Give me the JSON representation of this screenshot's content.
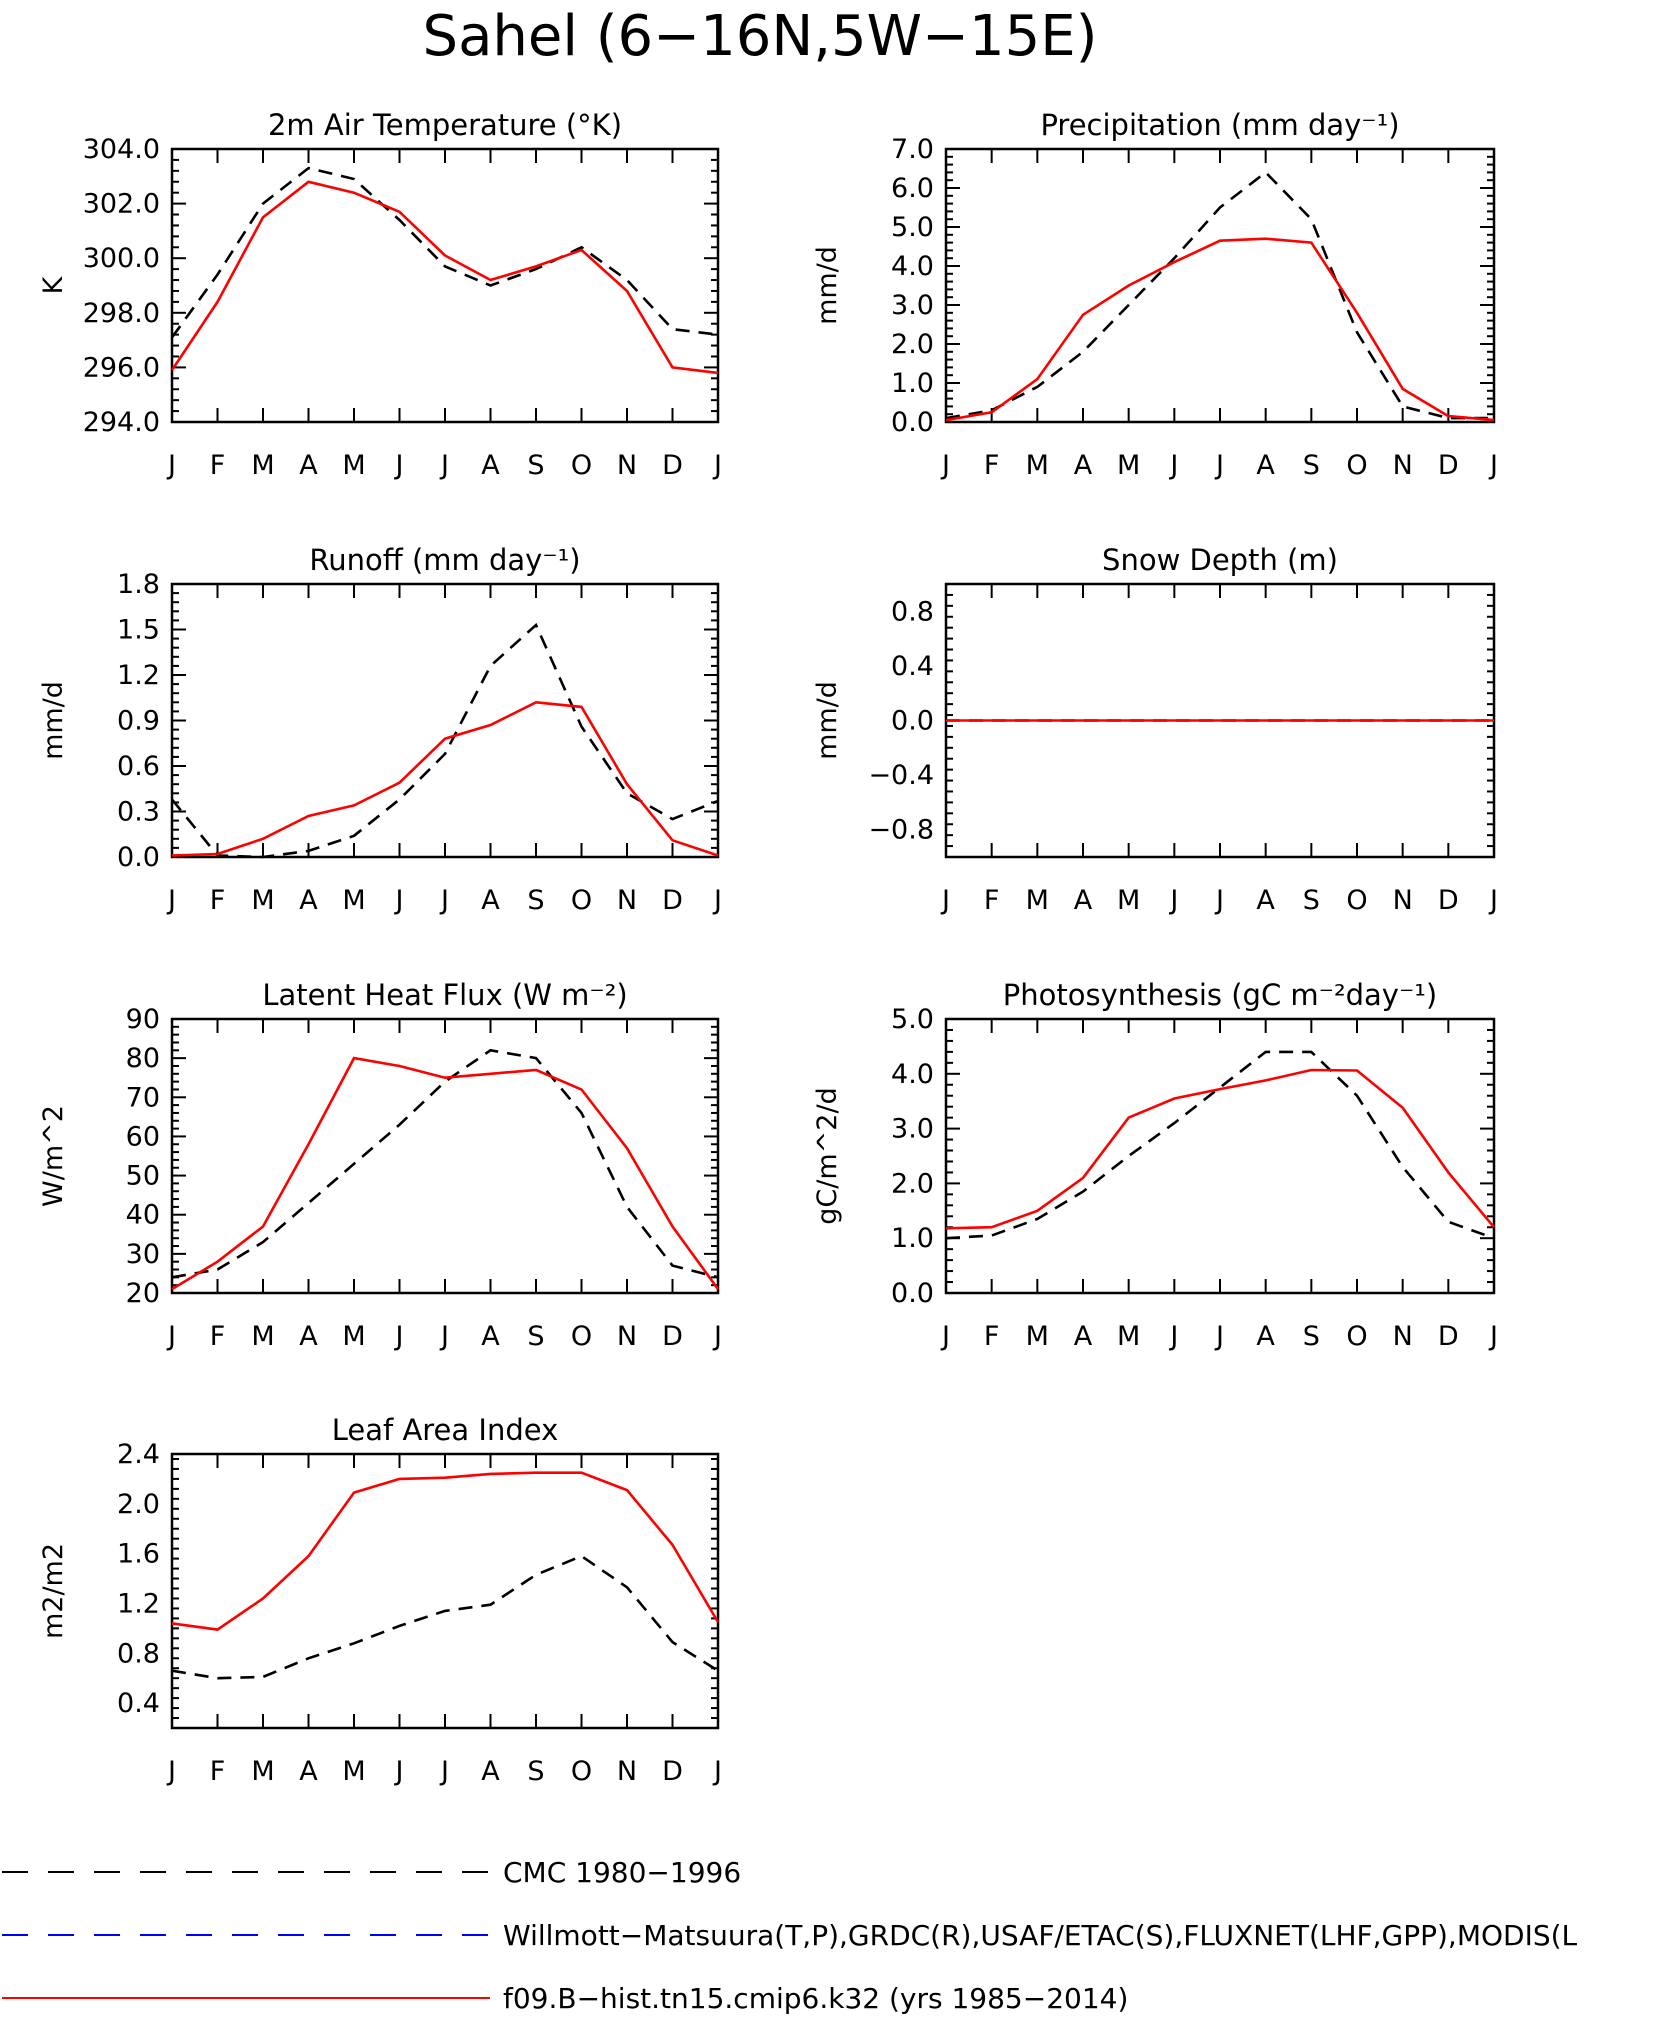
{
  "figure": {
    "title": "Sahel (6−16N,5W−15E)"
  },
  "legend": [
    {
      "label": "CMC 1980−1996",
      "color": "#000000",
      "dash": "dash"
    },
    {
      "label": "Willmott−Matsuura(T,P),GRDC(R),USAF/ETAC(S),FLUXNET(LHF,GPP),MODIS(L",
      "color": "#0000ff",
      "dash": "longdash"
    },
    {
      "label": "f09.B−hist.tn15.cmip6.k32 (yrs 1985−2014)",
      "color": "#ff0000",
      "dash": "solid"
    }
  ],
  "colors": {
    "cmc": "#000000",
    "model": "#ff0000",
    "obs": "#0000ff"
  },
  "chart_data": [
    {
      "type": "line",
      "title": "2m Air Temperature (°K)",
      "ylabel": "K",
      "x": [
        "J",
        "F",
        "M",
        "A",
        "M",
        "J",
        "J",
        "A",
        "S",
        "O",
        "N",
        "D",
        "J"
      ],
      "ylim": [
        294,
        304
      ],
      "yticks": [
        "294.0",
        "296.0",
        "298.0",
        "300.0",
        "302.0",
        "304.0"
      ],
      "series": [
        {
          "name": "CMC 1980−1996",
          "values": [
            297.1,
            299.4,
            302.0,
            303.3,
            302.9,
            301.4,
            299.7,
            299.0,
            299.6,
            300.4,
            299.2,
            297.4,
            297.2
          ]
        },
        {
          "name": "f09.B−hist.tn15.cmip6.k32 (yrs 1985−2014)",
          "values": [
            295.9,
            298.4,
            301.5,
            302.8,
            302.4,
            301.7,
            300.1,
            299.2,
            299.7,
            300.3,
            298.8,
            296.0,
            295.8
          ]
        }
      ]
    },
    {
      "type": "line",
      "title": "Precipitation (mm day⁻¹)",
      "ylabel": "mm/d",
      "x": [
        "J",
        "F",
        "M",
        "A",
        "M",
        "J",
        "J",
        "A",
        "S",
        "O",
        "N",
        "D",
        "J"
      ],
      "ylim": [
        0,
        7
      ],
      "yticks": [
        "0.0",
        "1.0",
        "2.0",
        "3.0",
        "4.0",
        "5.0",
        "6.0",
        "7.0"
      ],
      "series": [
        {
          "name": "CMC 1980−1996",
          "values": [
            0.1,
            0.3,
            0.9,
            1.8,
            3.0,
            4.2,
            5.5,
            6.4,
            5.2,
            2.3,
            0.4,
            0.1,
            0.1
          ]
        },
        {
          "name": "f09.B−hist.tn15.cmip6.k32 (yrs 1985−2014)",
          "values": [
            0.05,
            0.25,
            1.1,
            2.75,
            3.5,
            4.1,
            4.65,
            4.7,
            4.6,
            2.8,
            0.85,
            0.15,
            0.05
          ]
        }
      ]
    },
    {
      "type": "line",
      "title": "Runoff (mm day⁻¹)",
      "ylabel": "mm/d",
      "x": [
        "J",
        "F",
        "M",
        "A",
        "M",
        "J",
        "J",
        "A",
        "S",
        "O",
        "N",
        "D",
        "J"
      ],
      "ylim": [
        0,
        1.8
      ],
      "yticks": [
        "0.0",
        "0.3",
        "0.6",
        "0.9",
        "1.2",
        "1.5",
        "1.8"
      ],
      "series": [
        {
          "name": "CMC 1980−1996",
          "values": [
            0.38,
            0.01,
            0.0,
            0.04,
            0.14,
            0.38,
            0.68,
            1.26,
            1.53,
            0.86,
            0.42,
            0.25,
            0.37
          ]
        },
        {
          "name": "f09.B−hist.tn15.cmip6.k32 (yrs 1985−2014)",
          "values": [
            0.01,
            0.02,
            0.12,
            0.27,
            0.34,
            0.49,
            0.78,
            0.87,
            1.02,
            0.99,
            0.48,
            0.11,
            0.01
          ]
        }
      ]
    },
    {
      "type": "line",
      "title": "Snow Depth (m)",
      "ylabel": "mm/d",
      "x": [
        "J",
        "F",
        "M",
        "A",
        "M",
        "J",
        "J",
        "A",
        "S",
        "O",
        "N",
        "D",
        "J"
      ],
      "ylim": [
        -1,
        1
      ],
      "yticks": [
        "−0.8",
        "−0.4",
        "0.0",
        "0.4",
        "0.8"
      ],
      "series": [
        {
          "name": "CMC 1980−1996",
          "values": [
            0,
            0,
            0,
            0,
            0,
            0,
            0,
            0,
            0,
            0,
            0,
            0,
            0
          ]
        },
        {
          "name": "f09.B−hist.tn15.cmip6.k32 (yrs 1985−2014)",
          "values": [
            0,
            0,
            0,
            0,
            0,
            0,
            0,
            0,
            0,
            0,
            0,
            0,
            0
          ]
        }
      ]
    },
    {
      "type": "line",
      "title": "Latent Heat Flux (W m⁻²)",
      "ylabel": "W/m^2",
      "x": [
        "J",
        "F",
        "M",
        "A",
        "M",
        "J",
        "J",
        "A",
        "S",
        "O",
        "N",
        "D",
        "J"
      ],
      "ylim": [
        20,
        90
      ],
      "yticks": [
        "20",
        "30",
        "40",
        "50",
        "60",
        "70",
        "80",
        "90"
      ],
      "series": [
        {
          "name": "CMC 1980−1996",
          "values": [
            24,
            26,
            33,
            43,
            53,
            63,
            74,
            82,
            80,
            66,
            42,
            27,
            24
          ]
        },
        {
          "name": "f09.B−hist.tn15.cmip6.k32 (yrs 1985−2014)",
          "values": [
            21,
            28,
            37,
            58,
            80,
            78,
            75,
            76,
            77,
            72,
            57,
            37,
            21
          ]
        }
      ]
    },
    {
      "type": "line",
      "title": "Photosynthesis (gC m⁻²day⁻¹)",
      "ylabel": "gC/m^2/d",
      "x": [
        "J",
        "F",
        "M",
        "A",
        "M",
        "J",
        "J",
        "A",
        "S",
        "O",
        "N",
        "D",
        "J"
      ],
      "ylim": [
        0,
        5
      ],
      "yticks": [
        "0.0",
        "1.0",
        "2.0",
        "3.0",
        "4.0",
        "5.0"
      ],
      "series": [
        {
          "name": "CMC 1980−1996",
          "values": [
            1.0,
            1.05,
            1.35,
            1.85,
            2.5,
            3.1,
            3.75,
            4.4,
            4.4,
            3.6,
            2.3,
            1.3,
            1.0
          ]
        },
        {
          "name": "f09.B−hist.tn15.cmip6.k32 (yrs 1985−2014)",
          "values": [
            1.18,
            1.2,
            1.5,
            2.1,
            3.2,
            3.55,
            3.72,
            3.88,
            4.07,
            4.06,
            3.38,
            2.2,
            1.2
          ]
        }
      ]
    },
    {
      "type": "line",
      "title": "Leaf Area Index",
      "ylabel": "m2/m2",
      "x": [
        "J",
        "F",
        "M",
        "A",
        "M",
        "J",
        "J",
        "A",
        "S",
        "O",
        "N",
        "D",
        "J"
      ],
      "ylim": [
        0.2,
        2.4
      ],
      "yticks": [
        "0.4",
        "0.8",
        "1.2",
        "1.6",
        "2.0",
        "2.4"
      ],
      "series": [
        {
          "name": "CMC 1980−1996",
          "values": [
            0.66,
            0.6,
            0.61,
            0.76,
            0.88,
            1.02,
            1.14,
            1.19,
            1.43,
            1.58,
            1.33,
            0.89,
            0.66
          ]
        },
        {
          "name": "f09.B−hist.tn15.cmip6.k32 (yrs 1985−2014)",
          "values": [
            1.04,
            0.99,
            1.24,
            1.58,
            2.09,
            2.2,
            2.21,
            2.24,
            2.25,
            2.25,
            2.11,
            1.67,
            1.05
          ]
        }
      ]
    }
  ]
}
